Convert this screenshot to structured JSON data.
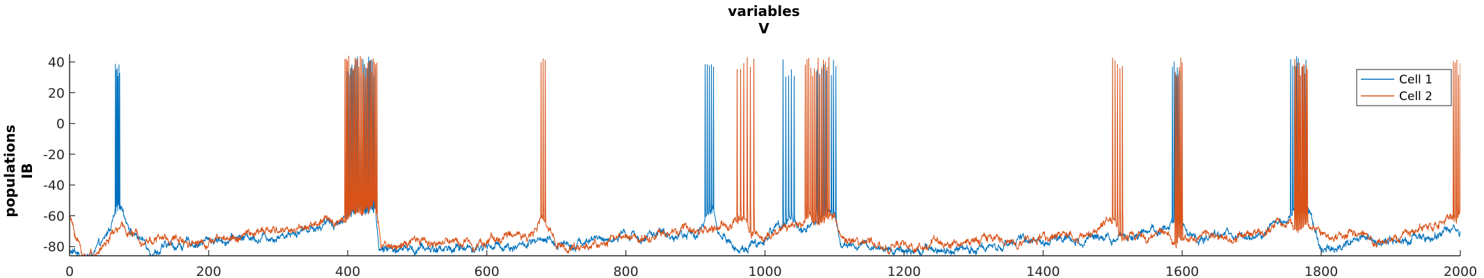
{
  "chart_data": {
    "type": "line",
    "title": [
      "variables",
      "V"
    ],
    "xlabel": "",
    "ylabel": [
      "populations",
      "IB"
    ],
    "xlim": [
      0,
      2000
    ],
    "ylim": [
      -86,
      45
    ],
    "xticks": [
      0,
      200,
      400,
      600,
      800,
      1000,
      1200,
      1400,
      1600,
      1800,
      2000
    ],
    "yticks": [
      -80,
      -60,
      -40,
      -20,
      0,
      20,
      40
    ],
    "grid": false,
    "legend_position": "top-right",
    "colors": {
      "cell1": "#0072BD",
      "cell2": "#D95319"
    },
    "series": [
      {
        "name": "Cell 1",
        "color": "#0072BD",
        "baseline": [
          [
            0,
            -84
          ],
          [
            30,
            -86
          ],
          [
            50,
            -78
          ],
          [
            65,
            -60
          ],
          [
            75,
            -55
          ],
          [
            90,
            -70
          ],
          [
            120,
            -82
          ],
          [
            200,
            -76
          ],
          [
            300,
            -72
          ],
          [
            390,
            -63
          ],
          [
            405,
            -57
          ],
          [
            440,
            -54
          ],
          [
            445,
            -82
          ],
          [
            500,
            -82
          ],
          [
            600,
            -80
          ],
          [
            700,
            -78
          ],
          [
            800,
            -74
          ],
          [
            900,
            -72
          ],
          [
            915,
            -62
          ],
          [
            925,
            -58
          ],
          [
            935,
            -72
          ],
          [
            960,
            -82
          ],
          [
            1000,
            -76
          ],
          [
            1020,
            -64
          ],
          [
            1035,
            -60
          ],
          [
            1050,
            -70
          ],
          [
            1070,
            -64
          ],
          [
            1100,
            -58
          ],
          [
            1110,
            -80
          ],
          [
            1200,
            -82
          ],
          [
            1300,
            -80
          ],
          [
            1400,
            -76
          ],
          [
            1500,
            -72
          ],
          [
            1580,
            -68
          ],
          [
            1595,
            -58
          ],
          [
            1610,
            -75
          ],
          [
            1700,
            -74
          ],
          [
            1750,
            -64
          ],
          [
            1760,
            -56
          ],
          [
            1785,
            -58
          ],
          [
            1800,
            -80
          ],
          [
            1900,
            -76
          ],
          [
            2000,
            -68
          ]
        ],
        "bursts": [
          [
            66,
            72,
            6
          ],
          [
            398,
            440,
            22
          ],
          [
            914,
            926,
            5
          ],
          [
            1026,
            1042,
            5
          ],
          [
            1075,
            1102,
            9
          ],
          [
            1586,
            1598,
            6
          ],
          [
            1756,
            1778,
            9
          ]
        ]
      },
      {
        "name": "Cell 2",
        "color": "#D95319",
        "baseline": [
          [
            0,
            -60
          ],
          [
            8,
            -72
          ],
          [
            20,
            -86
          ],
          [
            40,
            -84
          ],
          [
            55,
            -76
          ],
          [
            70,
            -68
          ],
          [
            100,
            -74
          ],
          [
            200,
            -76
          ],
          [
            300,
            -70
          ],
          [
            395,
            -62
          ],
          [
            405,
            -58
          ],
          [
            440,
            -55
          ],
          [
            448,
            -80
          ],
          [
            500,
            -78
          ],
          [
            600,
            -76
          ],
          [
            670,
            -70
          ],
          [
            680,
            -62
          ],
          [
            690,
            -72
          ],
          [
            720,
            -82
          ],
          [
            800,
            -74
          ],
          [
            900,
            -70
          ],
          [
            950,
            -66
          ],
          [
            965,
            -62
          ],
          [
            985,
            -70
          ],
          [
            1000,
            -76
          ],
          [
            1050,
            -66
          ],
          [
            1060,
            -60
          ],
          [
            1100,
            -62
          ],
          [
            1110,
            -78
          ],
          [
            1200,
            -80
          ],
          [
            1300,
            -76
          ],
          [
            1400,
            -74
          ],
          [
            1480,
            -70
          ],
          [
            1500,
            -62
          ],
          [
            1515,
            -72
          ],
          [
            1600,
            -76
          ],
          [
            1700,
            -70
          ],
          [
            1760,
            -66
          ],
          [
            1780,
            -64
          ],
          [
            1800,
            -72
          ],
          [
            1900,
            -74
          ],
          [
            1980,
            -66
          ],
          [
            2000,
            -60
          ]
        ],
        "bursts": [
          [
            396,
            442,
            26
          ],
          [
            678,
            684,
            3
          ],
          [
            960,
            984,
            6
          ],
          [
            1058,
            1092,
            14
          ],
          [
            1500,
            1514,
            5
          ],
          [
            1590,
            1600,
            6
          ],
          [
            1762,
            1780,
            12
          ],
          [
            1990,
            2000,
            5
          ]
        ]
      }
    ]
  }
}
